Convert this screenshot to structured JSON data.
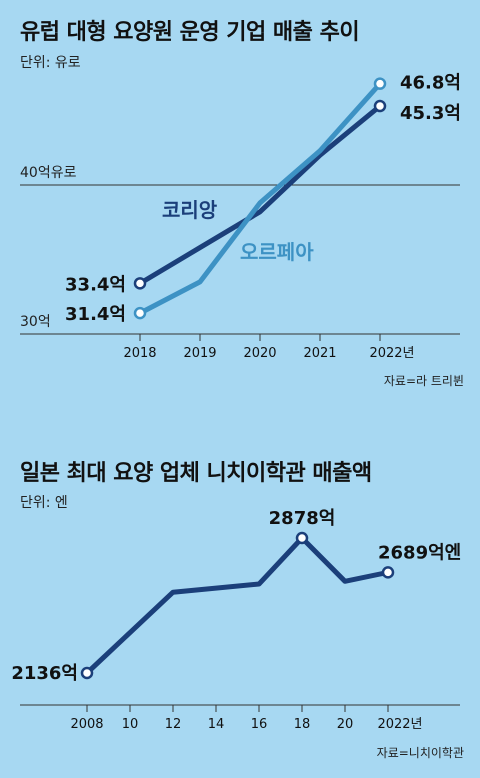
{
  "chart_data": [
    {
      "type": "line",
      "title": "유럽 대형 요양원 운영 기업 매출 추이",
      "unit_label": "단위: 유로",
      "source": "자료=라 트리뷘",
      "x": [
        "2018",
        "2019",
        "2020",
        "2021",
        "2022년"
      ],
      "ylim": [
        30,
        50
      ],
      "reference_lines": [
        {
          "value": 40,
          "label": "40억유로"
        },
        {
          "value": 30,
          "label": "30억"
        }
      ],
      "series": [
        {
          "name": "코리앙",
          "color": "#1b3f7a",
          "values": [
            33.4,
            35.8,
            38.2,
            42.0,
            45.3
          ],
          "labels": {
            "0": "33.4억",
            "4": "45.3억"
          }
        },
        {
          "name": "오르페아",
          "color": "#3d92c4",
          "values": [
            31.4,
            33.5,
            38.8,
            42.3,
            46.8
          ],
          "labels": {
            "0": "31.4억",
            "4": "46.8억"
          }
        }
      ]
    },
    {
      "type": "line",
      "title": "일본 최대 요양 업체 니치이학관 매출액",
      "unit_label": "단위: 엔",
      "source": "자료=니치이학관",
      "x": [
        "2008",
        "10",
        "12",
        "14",
        "16",
        "18",
        "20",
        "2022년"
      ],
      "x_values": [
        2008,
        2010,
        2012,
        2014,
        2016,
        2018,
        2020,
        2022
      ],
      "ylim": [
        2100,
        2950
      ],
      "series": [
        {
          "name": "",
          "color": "#1b3f7a",
          "x_values": [
            2008,
            2012,
            2016,
            2018,
            2020,
            2022
          ],
          "values": [
            2136,
            2580,
            2625,
            2878,
            2640,
            2689
          ],
          "labels": {
            "0": "2136억",
            "3": "2878억",
            "5": "2689억엔"
          }
        }
      ]
    }
  ]
}
